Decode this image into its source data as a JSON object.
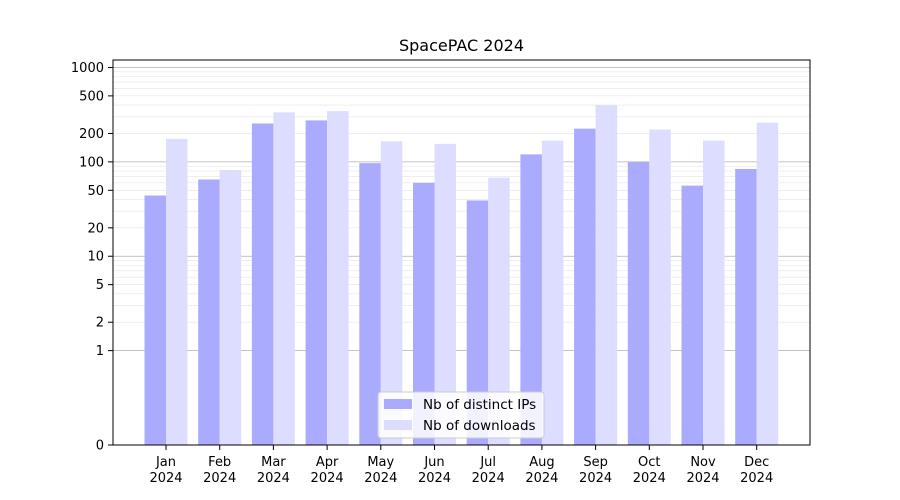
{
  "chart_data": {
    "type": "bar",
    "title": "SpacePAC 2024",
    "xlabel": "",
    "ylabel": "",
    "y_scale": "symlog",
    "ylim": [
      0,
      1200
    ],
    "yticks": [
      0,
      1,
      2,
      5,
      10,
      20,
      50,
      100,
      200,
      500,
      1000
    ],
    "ytick_labels": [
      "0",
      "1",
      "2",
      "5",
      "10",
      "20",
      "50",
      "100",
      "200",
      "500",
      "1000"
    ],
    "grid": true,
    "legend_position": "bottom-center",
    "categories": [
      [
        "Jan",
        "2024"
      ],
      [
        "Feb",
        "2024"
      ],
      [
        "Mar",
        "2024"
      ],
      [
        "Apr",
        "2024"
      ],
      [
        "May",
        "2024"
      ],
      [
        "Jun",
        "2024"
      ],
      [
        "Jul",
        "2024"
      ],
      [
        "Aug",
        "2024"
      ],
      [
        "Sep",
        "2024"
      ],
      [
        "Oct",
        "2024"
      ],
      [
        "Nov",
        "2024"
      ],
      [
        "Dec",
        "2024"
      ]
    ],
    "series": [
      {
        "name": "Nb of distinct IPs",
        "color": "#aaaaff",
        "values": [
          44,
          65,
          255,
          275,
          97,
          60,
          39,
          120,
          225,
          100,
          56,
          84
        ]
      },
      {
        "name": "Nb of downloads",
        "color": "#ddddff",
        "values": [
          175,
          82,
          335,
          345,
          165,
          155,
          68,
          168,
          400,
          220,
          168,
          260
        ]
      }
    ]
  }
}
